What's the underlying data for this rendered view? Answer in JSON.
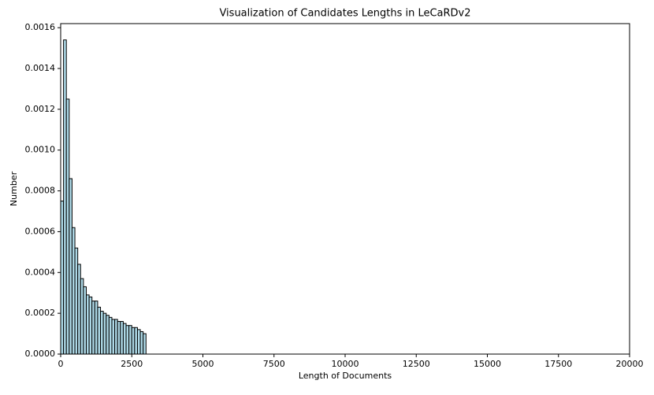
{
  "chart_data": {
    "type": "histogram",
    "title": "Visualization of Candidates Lengths in LeCaRDv2",
    "x_label": "Length of Documents",
    "y_label": "Number",
    "bins": [
      0,
      100,
      200,
      300,
      400,
      500,
      600,
      700,
      800,
      900,
      1000,
      1100,
      1200,
      1300,
      1400,
      1500,
      1600,
      1700,
      1800,
      1900,
      2000,
      2100,
      2200,
      2300,
      2400,
      2500,
      2600,
      2700,
      2800,
      2900,
      3000
    ],
    "values": [
      0.00075,
      0.00154,
      0.00125,
      0.00086,
      0.00062,
      0.00052,
      0.00044,
      0.00037,
      0.00033,
      0.00029,
      0.00028,
      0.00026,
      0.00026,
      0.00023,
      0.00021,
      0.0002,
      0.00019,
      0.00018,
      0.00017,
      0.00017,
      0.00016,
      0.00016,
      0.00015,
      0.00014,
      0.00014,
      0.00013,
      0.00013,
      0.00012,
      0.00011,
      0.0001
    ],
    "color": "#add8e6",
    "edgecolor": "#000000",
    "xlim": [
      0,
      20000
    ],
    "xticks": [
      0,
      2500,
      5000,
      7500,
      10000,
      12500,
      15000,
      17500,
      20000
    ],
    "ylim": [
      0,
      0.00162
    ],
    "yticks": [
      {
        "value": 0,
        "label": "0.0000"
      },
      {
        "value": 0.0002,
        "label": "0.0002"
      },
      {
        "value": 0.0004,
        "label": "0.0004"
      },
      {
        "value": 0.0006,
        "label": "0.0006"
      },
      {
        "value": 0.0008,
        "label": "0.0008"
      },
      {
        "value": 0.001,
        "label": "0.0010"
      },
      {
        "value": 0.0012,
        "label": "0.0012"
      },
      {
        "value": 0.0014,
        "label": "0.0014"
      },
      {
        "value": 0.0016,
        "label": "0.0016"
      }
    ]
  }
}
